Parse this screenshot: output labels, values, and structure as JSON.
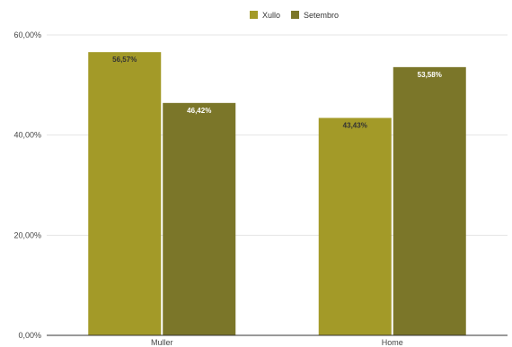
{
  "chart_data": {
    "type": "bar",
    "title": "",
    "xlabel": "",
    "ylabel": "",
    "categories": [
      "Muller",
      "Home"
    ],
    "series": [
      {
        "name": "Xullo",
        "values": [
          56.57,
          43.43
        ],
        "labels": [
          "56,57%",
          "43,43%"
        ],
        "color": "#a39a28",
        "label_color": "#333333"
      },
      {
        "name": "Setembro",
        "values": [
          46.42,
          53.58
        ],
        "labels": [
          "46,42%",
          "53,58%"
        ],
        "color": "#7b7629",
        "label_color": "#ffffff"
      }
    ],
    "ylim": [
      0,
      60
    ],
    "yticks": [
      0,
      20,
      40,
      60
    ],
    "ytick_labels": [
      "0,00%",
      "20,00%",
      "40,00%",
      "60,00%"
    ],
    "grid": true,
    "legend_position": "top"
  }
}
